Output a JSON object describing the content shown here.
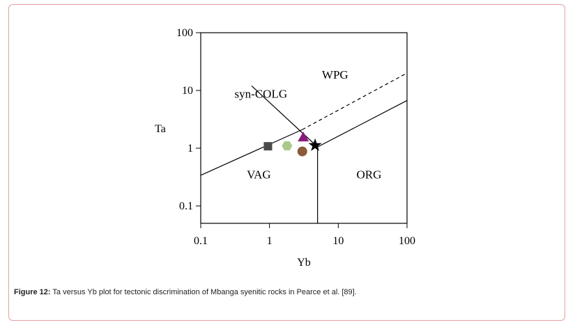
{
  "chart_data": {
    "type": "scatter",
    "title": "",
    "xlabel": "Yb",
    "ylabel": "Ta",
    "x_scale": "log",
    "y_scale": "log",
    "xlim": [
      0.1,
      100
    ],
    "ylim": [
      0.05,
      100
    ],
    "x_ticks": [
      "0.1",
      "1",
      "10",
      "100"
    ],
    "y_ticks": [
      "0.1",
      "1",
      "10",
      "100"
    ],
    "regions": [
      "WPG",
      "syn-COLG",
      "VAG",
      "ORG"
    ],
    "boundaries": [
      {
        "name": "VAG-upper",
        "style": "solid",
        "points": [
          [
            0.1,
            0.34
          ],
          [
            3.0,
            2.1
          ]
        ]
      },
      {
        "name": "WPG-syn-COLG",
        "style": "dashed",
        "points": [
          [
            3.0,
            2.1
          ],
          [
            100,
            20
          ]
        ]
      },
      {
        "name": "syn-COLG-WPG",
        "style": "solid",
        "points": [
          [
            0.55,
            12
          ],
          [
            5.0,
            1.05
          ]
        ]
      },
      {
        "name": "ORG-upper",
        "style": "solid",
        "points": [
          [
            5.0,
            1.05
          ],
          [
            100,
            6.7
          ]
        ]
      },
      {
        "name": "VAG-ORG",
        "style": "solid",
        "points": [
          [
            5.0,
            1.05
          ],
          [
            5.0,
            0.05
          ]
        ]
      }
    ],
    "points": [
      {
        "marker": "square",
        "color": "#4a4a4a",
        "x": 0.95,
        "y": 1.08
      },
      {
        "marker": "hexagon",
        "color": "#a9c98a",
        "x": 1.8,
        "y": 1.1
      },
      {
        "marker": "triangle",
        "color": "#8a1a7a",
        "x": 3.1,
        "y": 1.55
      },
      {
        "marker": "circle",
        "color": "#8a5a3a",
        "x": 3.0,
        "y": 0.88
      },
      {
        "marker": "star",
        "color": "#000000",
        "x": 4.6,
        "y": 1.12
      }
    ]
  },
  "caption": {
    "label": "Figure 12:",
    "text": " Ta versus Yb plot for tectonic discrimination of Mbanga syenitic rocks in Pearce et al. [89]."
  }
}
